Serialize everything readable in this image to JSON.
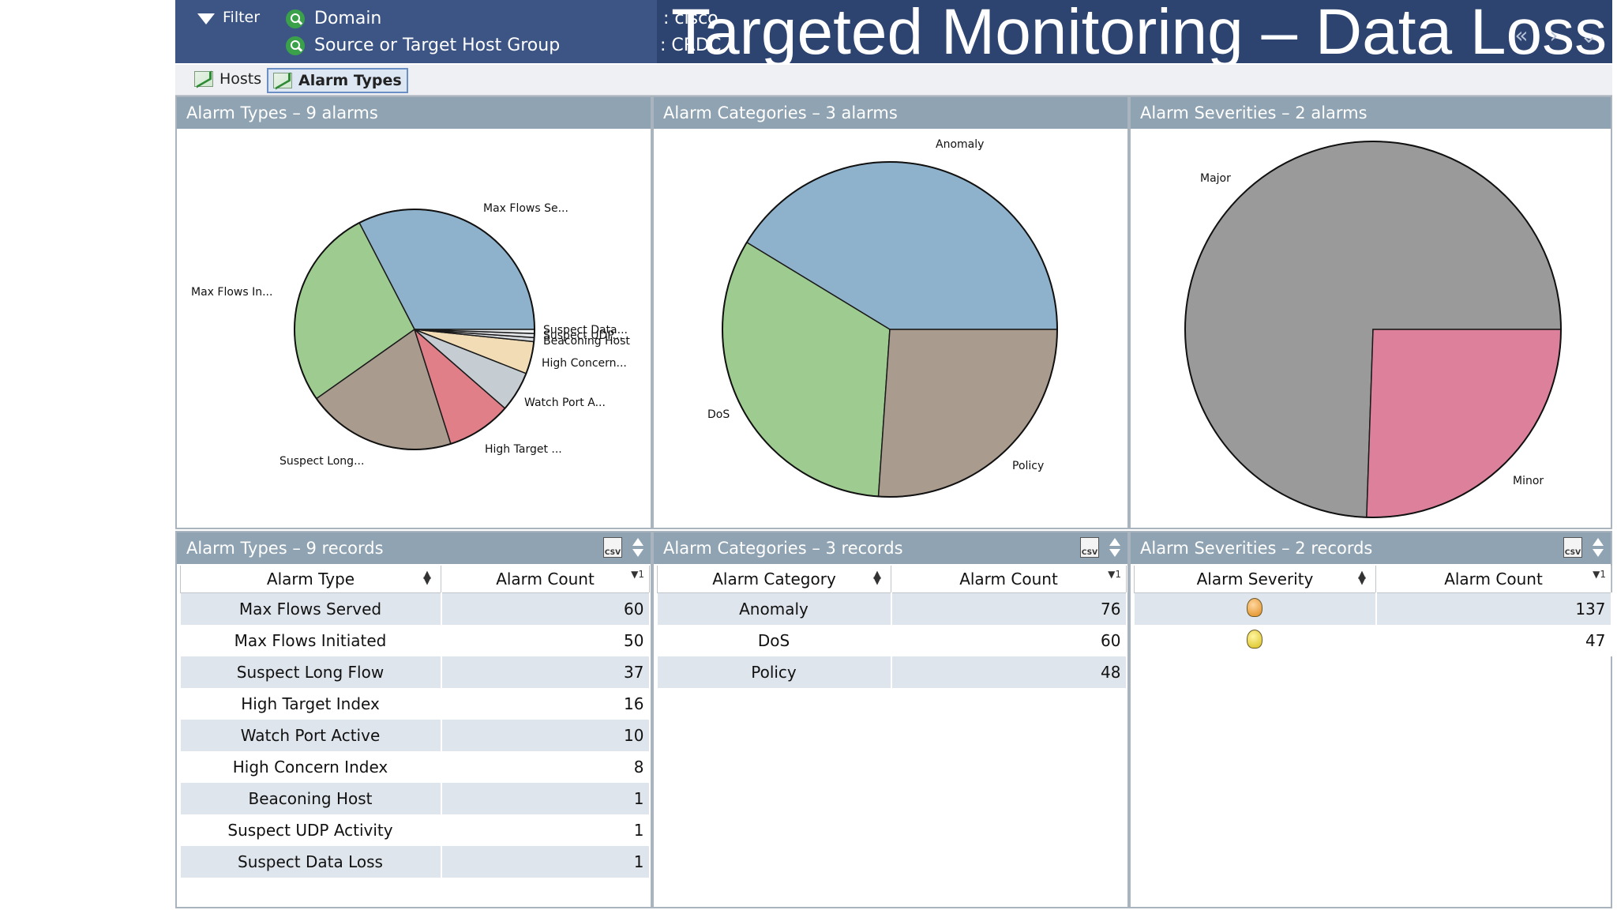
{
  "header": {
    "filter_label": "Filter",
    "domain_label": "Domain",
    "domain_value": ": cisco",
    "host_group_label": "Source or Target Host Group",
    "host_group_value": ": CRDC",
    "title": "Targeted Monitoring – Data Loss"
  },
  "tabs": [
    {
      "label": "Hosts",
      "active": false
    },
    {
      "label": "Alarm Types",
      "active": true
    }
  ],
  "charts": {
    "types": {
      "title": "Alarm Types – 9 alarms",
      "chart_data": {
        "type": "pie",
        "categories": [
          "Max Flows Served",
          "Max Flows Initiated",
          "Suspect Long Flow",
          "High Target Index",
          "Watch Port Active",
          "High Concern Index",
          "Beaconing Host",
          "Suspect UDP Activity",
          "Suspect Data Loss"
        ],
        "values": [
          60,
          50,
          37,
          16,
          10,
          8,
          1,
          1,
          1
        ],
        "labels": [
          "Max Flows Se...",
          "Max Flows In...",
          "Suspect Long...",
          "High Target ...",
          "Watch Port A...",
          "High Concern...",
          "Beaconing Host",
          "Suspect UDP...",
          "Suspect Data..."
        ],
        "colors": [
          "#8eb2cc",
          "#9dcb90",
          "#a99b8d",
          "#e07f88",
          "#c5ccd2",
          "#f1dcb5",
          "#d9dde2",
          "#e4e7ea",
          "#edf0f2"
        ]
      }
    },
    "categories": {
      "title": "Alarm Categories – 3 alarms",
      "chart_data": {
        "type": "pie",
        "categories": [
          "Anomaly",
          "DoS",
          "Policy"
        ],
        "values": [
          76,
          60,
          48
        ],
        "labels": [
          "Anomaly",
          "DoS",
          "Policy"
        ],
        "colors": [
          "#8eb2cc",
          "#9dcb90",
          "#a99b8d"
        ]
      }
    },
    "severities": {
      "title": "Alarm Severities – 2 alarms",
      "chart_data": {
        "type": "pie",
        "categories": [
          "Major",
          "Minor"
        ],
        "values": [
          137,
          47
        ],
        "labels": [
          "Major",
          "Minor"
        ],
        "colors": [
          "#9a9a9a",
          "#dc809c"
        ]
      }
    }
  },
  "tables": {
    "types": {
      "title": "Alarm Types – 9 records",
      "col1": "Alarm Type",
      "col2": "Alarm Count",
      "sort_marker": "▼1",
      "csv_label": "CSV",
      "rows": [
        {
          "name": "Max Flows Served",
          "count": "60"
        },
        {
          "name": "Max Flows Initiated",
          "count": "50"
        },
        {
          "name": "Suspect Long Flow",
          "count": "37"
        },
        {
          "name": "High Target Index",
          "count": "16"
        },
        {
          "name": "Watch Port Active",
          "count": "10"
        },
        {
          "name": "High Concern Index",
          "count": "8"
        },
        {
          "name": "Beaconing Host",
          "count": "1"
        },
        {
          "name": "Suspect UDP Activity",
          "count": "1"
        },
        {
          "name": "Suspect Data Loss",
          "count": "1"
        }
      ]
    },
    "categories": {
      "title": "Alarm Categories – 3 records",
      "col1": "Alarm Category",
      "col2": "Alarm Count",
      "sort_marker": "▼1",
      "csv_label": "CSV",
      "rows": [
        {
          "name": "Anomaly",
          "count": "76"
        },
        {
          "name": "DoS",
          "count": "60"
        },
        {
          "name": "Policy",
          "count": "48"
        }
      ]
    },
    "severities": {
      "title": "Alarm Severities – 2 records",
      "col1": "Alarm Severity",
      "col2": "Alarm Count",
      "sort_marker": "▼1",
      "csv_label": "CSV",
      "rows": [
        {
          "icon": "major-severity-icon",
          "count": "137"
        },
        {
          "icon": "minor-severity-icon",
          "count": "47"
        }
      ]
    }
  }
}
